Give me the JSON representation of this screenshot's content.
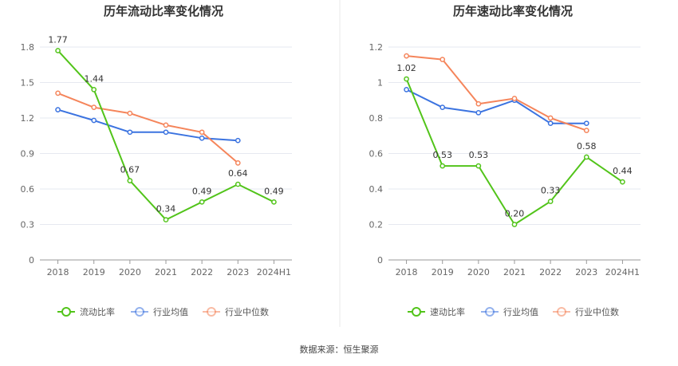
{
  "source": "数据来源：恒生聚源",
  "colors": {
    "green": "#52c41a",
    "blue": "#3b73e0",
    "orange": "#f5855b",
    "divider": "#e8e8e8",
    "grid": "#e6e9f0"
  },
  "chart_data": [
    {
      "type": "line",
      "title": "历年流动比率变化情况",
      "categories": [
        "2018",
        "2019",
        "2020",
        "2021",
        "2022",
        "2023",
        "2024H1"
      ],
      "ylim": [
        0,
        1.8
      ],
      "yticks": [
        "0",
        "0.3",
        "0.6",
        "0.9",
        "1.2",
        "1.5",
        "1.8"
      ],
      "legend_position": "bottom",
      "series": [
        {
          "name": "流动比率",
          "color": "#52c41a",
          "labels": true,
          "legend_icon": "circle-line",
          "values": [
            1.77,
            1.44,
            0.67,
            0.34,
            0.49,
            0.64,
            0.49
          ],
          "label_text": [
            "1.77",
            "1.44",
            "0.67",
            "0.34",
            "0.49",
            "0.64",
            "0.49"
          ]
        },
        {
          "name": "行业均值",
          "color": "#3b73e0",
          "labels": false,
          "legend_icon": "circle-line",
          "values": [
            1.27,
            1.18,
            1.08,
            1.08,
            1.03,
            1.01,
            null
          ]
        },
        {
          "name": "行业中位数",
          "color": "#f5855b",
          "labels": false,
          "legend_icon": "circle-line",
          "values": [
            1.41,
            1.29,
            1.24,
            1.14,
            1.08,
            0.82,
            null
          ]
        }
      ]
    },
    {
      "type": "line",
      "title": "历年速动比率变化情况",
      "categories": [
        "2018",
        "2019",
        "2020",
        "2021",
        "2022",
        "2023",
        "2024H1"
      ],
      "ylim": [
        0,
        1.2
      ],
      "yticks": [
        "0",
        "0.2",
        "0.4",
        "0.6",
        "0.8",
        "1",
        "1.2"
      ],
      "legend_position": "bottom",
      "series": [
        {
          "name": "速动比率",
          "color": "#52c41a",
          "labels": true,
          "legend_icon": "circle-line",
          "values": [
            1.02,
            0.53,
            0.53,
            0.2,
            0.33,
            0.58,
            0.44
          ],
          "label_text": [
            "1.02",
            "0.53",
            "0.53",
            "0.20",
            "0.33",
            "0.58",
            "0.44"
          ]
        },
        {
          "name": "行业均值",
          "color": "#3b73e0",
          "labels": false,
          "legend_icon": "circle-line",
          "values": [
            0.96,
            0.86,
            0.83,
            0.9,
            0.77,
            0.77,
            null
          ]
        },
        {
          "name": "行业中位数",
          "color": "#f5855b",
          "labels": false,
          "legend_icon": "circle-line",
          "values": [
            1.15,
            1.13,
            0.88,
            0.91,
            0.8,
            0.73,
            null
          ]
        }
      ]
    }
  ]
}
